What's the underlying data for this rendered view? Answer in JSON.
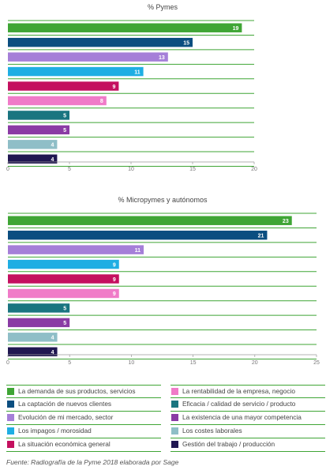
{
  "colors": {
    "demanda": "#3fa535",
    "captacion": "#0b4e80",
    "evolucion": "#a57fd8",
    "impagos": "#1faee3",
    "situacion": "#c4105f",
    "rentabilidad": "#f07bc8",
    "eficacia": "#1a7580",
    "competencia": "#8a3ba4",
    "costes": "#8fbec7",
    "gestion": "#201751",
    "divider": "#3fa535"
  },
  "legend": {
    "left": [
      {
        "key": "demanda",
        "label": "La demanda de sus productos, servicios"
      },
      {
        "key": "captacion",
        "label": "La captación de nuevos clientes"
      },
      {
        "key": "evolucion",
        "label": "Evolución de mi mercado, sector"
      },
      {
        "key": "impagos",
        "label": "Los impagos / morosidad"
      },
      {
        "key": "situacion",
        "label": "La situación económica general"
      }
    ],
    "right": [
      {
        "key": "rentabilidad",
        "label": "La rentabilidad de la empresa, negocio"
      },
      {
        "key": "eficacia",
        "label": "Eficacia / calidad de servicio / producto"
      },
      {
        "key": "competencia",
        "label": "La existencia de una mayor competencia"
      },
      {
        "key": "costes",
        "label": "Los costes laborales"
      },
      {
        "key": "gestion",
        "label": "Gestión del trabajo / producción"
      }
    ]
  },
  "source": "Fuente: Radiografía de la Pyme 2018 elaborada por Sage",
  "chart_data": [
    {
      "type": "bar",
      "orientation": "horizontal",
      "title": "% Pymes",
      "categories": [
        "La demanda de sus productos, servicios",
        "La captación de nuevos clientes",
        "Evolución de mi mercado, sector",
        "Los impagos / morosidad",
        "La situación económica general",
        "La rentabilidad de la empresa, negocio",
        "Eficacia / calidad de servicio / producto",
        "La existencia de una mayor competencia",
        "Los costes laborales",
        "Gestión del trabajo / producción"
      ],
      "keys": [
        "demanda",
        "captacion",
        "evolucion",
        "impagos",
        "situacion",
        "rentabilidad",
        "eficacia",
        "competencia",
        "costes",
        "gestion"
      ],
      "values": [
        19,
        15,
        13,
        11,
        9,
        8,
        5,
        5,
        4,
        4
      ],
      "xlim": [
        0,
        20
      ],
      "xticks": [
        0,
        5,
        10,
        15,
        20
      ]
    },
    {
      "type": "bar",
      "orientation": "horizontal",
      "title": "% Micropymes y autónomos",
      "categories": [
        "La demanda de sus productos, servicios",
        "La captación de nuevos clientes",
        "Evolución de mi mercado, sector",
        "Los impagos / morosidad",
        "La situación económica general",
        "La rentabilidad de la empresa, negocio",
        "Eficacia / calidad de servicio / producto",
        "La existencia de una mayor competencia",
        "Los costes laborales",
        "Gestión del trabajo / producción"
      ],
      "keys": [
        "demanda",
        "captacion",
        "evolucion",
        "impagos",
        "situacion",
        "rentabilidad",
        "eficacia",
        "competencia",
        "costes",
        "gestion"
      ],
      "values": [
        23,
        21,
        11,
        9,
        9,
        9,
        5,
        5,
        4,
        4
      ],
      "xlim": [
        0,
        25
      ],
      "xticks": [
        0,
        5,
        10,
        15,
        20,
        25
      ]
    }
  ]
}
